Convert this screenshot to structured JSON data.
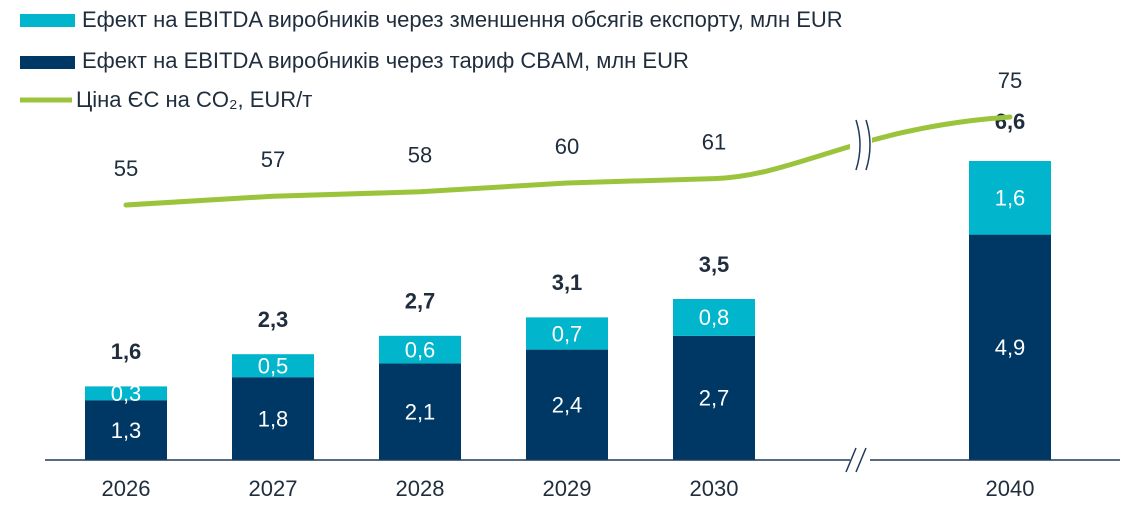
{
  "chart_data": {
    "type": "bar",
    "categories": [
      "2026",
      "2027",
      "2028",
      "2029",
      "2030",
      "2040"
    ],
    "stacked": true,
    "series": [
      {
        "name": "Ефект на EBITDA виробників через тариф CBAM, млн EUR",
        "color": "#003865",
        "values": [
          1.3,
          1.8,
          2.1,
          2.4,
          2.7,
          4.9
        ],
        "value_labels": [
          "1,3",
          "1,8",
          "2,1",
          "2,4",
          "2,7",
          "4,9"
        ]
      },
      {
        "name": "Ефект на EBITDA виробників через зменшення обсягів експорту, млн EUR",
        "color": "#00b5cc",
        "values": [
          0.3,
          0.5,
          0.6,
          0.7,
          0.8,
          1.6
        ],
        "value_labels": [
          "0,3",
          "0,5",
          "0,6",
          "0,7",
          "0,8",
          "1,6"
        ]
      },
      {
        "name": "Ціна ЄС на CO₂, EUR/т",
        "type": "line",
        "color": "#9bc43c",
        "values": [
          55,
          57,
          58,
          60,
          61,
          75
        ]
      }
    ],
    "totals": {
      "values": [
        1.6,
        2.3,
        2.7,
        3.1,
        3.5,
        6.6
      ],
      "value_labels": [
        "1,6",
        "2,3",
        "2,7",
        "3,1",
        "3,5",
        "6,6"
      ]
    },
    "axis_break": true
  }
}
